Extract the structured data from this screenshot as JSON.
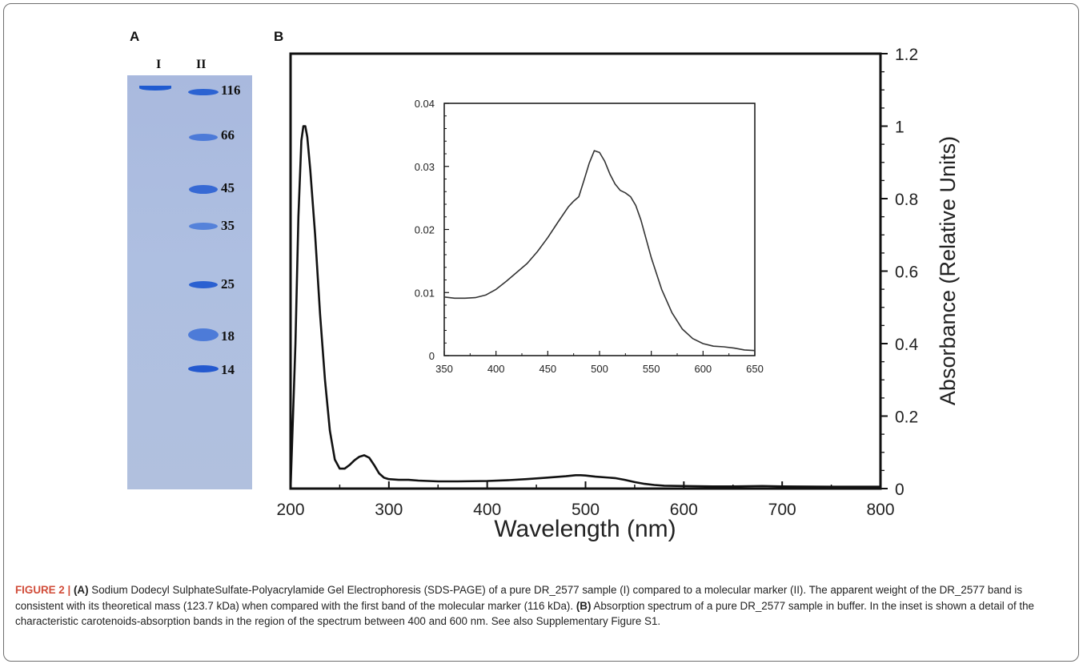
{
  "panel_a": {
    "letter": "A",
    "lanes": [
      "I",
      "II"
    ],
    "marker_labels": [
      "116",
      "66",
      "45",
      "35",
      "25",
      "18",
      "14"
    ]
  },
  "chart_data": [
    {
      "type": "line",
      "panel": "B",
      "xlabel": "Wavelength (nm)",
      "ylabel": "Absorbance (Relative Units)",
      "xlim": [
        200,
        800
      ],
      "ylim": [
        0,
        1.2
      ],
      "xticks": [
        200,
        300,
        400,
        500,
        600,
        700,
        800
      ],
      "yticks": [
        0,
        0.2,
        0.4,
        0.6,
        0.8,
        1,
        1.2
      ],
      "ytick_labels": [
        "0",
        "0.2",
        "0.4",
        "0.6",
        "0.8",
        "1",
        "1.2"
      ],
      "yaxis_side": "right",
      "grid": false,
      "series": [
        {
          "x": [
            200,
            205,
            208,
            211,
            213,
            215,
            217,
            220,
            225,
            230,
            235,
            240,
            245,
            250,
            255,
            260,
            265,
            270,
            275,
            280,
            285,
            290,
            295,
            300,
            310,
            320,
            330,
            350,
            370,
            400,
            420,
            440,
            460,
            480,
            490,
            495,
            500,
            510,
            520,
            530,
            540,
            550,
            560,
            570,
            580,
            600,
            630,
            650,
            680,
            700,
            750,
            800
          ],
          "y": [
            0.0,
            0.4,
            0.75,
            0.96,
            1.0,
            1.0,
            0.97,
            0.88,
            0.7,
            0.48,
            0.3,
            0.16,
            0.08,
            0.055,
            0.055,
            0.065,
            0.078,
            0.088,
            0.092,
            0.085,
            0.065,
            0.042,
            0.03,
            0.026,
            0.024,
            0.024,
            0.022,
            0.02,
            0.02,
            0.021,
            0.023,
            0.026,
            0.03,
            0.034,
            0.037,
            0.037,
            0.036,
            0.033,
            0.031,
            0.029,
            0.024,
            0.018,
            0.013,
            0.01,
            0.008,
            0.007,
            0.006,
            0.006,
            0.007,
            0.006,
            0.005,
            0.005
          ]
        }
      ]
    },
    {
      "type": "line",
      "panel": "inset",
      "xlim": [
        350,
        650
      ],
      "ylim": [
        0,
        0.04
      ],
      "xticks": [
        350,
        400,
        450,
        500,
        550,
        600,
        650
      ],
      "yticks": [
        0,
        0.01,
        0.02,
        0.03,
        0.04
      ],
      "ytick_labels": [
        "0",
        "0.01",
        "0.02",
        "0.03",
        "0.04"
      ],
      "grid": false,
      "series": [
        {
          "x": [
            350,
            360,
            370,
            380,
            390,
            400,
            410,
            420,
            430,
            440,
            450,
            460,
            470,
            475,
            480,
            485,
            490,
            495,
            500,
            505,
            510,
            515,
            520,
            525,
            530,
            535,
            540,
            545,
            550,
            560,
            570,
            580,
            590,
            600,
            610,
            620,
            630,
            640,
            650
          ],
          "y": [
            0.0093,
            0.0091,
            0.0091,
            0.0092,
            0.0096,
            0.0105,
            0.0118,
            0.0132,
            0.0146,
            0.0165,
            0.0187,
            0.0212,
            0.0236,
            0.0245,
            0.0252,
            0.0278,
            0.0305,
            0.0325,
            0.0322,
            0.0308,
            0.0288,
            0.0272,
            0.0262,
            0.0258,
            0.0252,
            0.0238,
            0.0215,
            0.0185,
            0.0155,
            0.0105,
            0.0068,
            0.0042,
            0.0027,
            0.0019,
            0.0015,
            0.0014,
            0.0012,
            0.0009,
            0.0008
          ]
        }
      ]
    }
  ],
  "caption": {
    "label": "FIGURE 2 |",
    "a_tag": "(A)",
    "a_text": " Sodium Dodecyl SulphateSulfate-Polyacrylamide Gel Electrophoresis (SDS-PAGE) of a pure DR_2577 sample (I) compared to a molecular marker (II). The apparent weight of the DR_2577 band is consistent with its theoretical mass (123.7 kDa) when compared with the first band of the molecular marker (116 kDa). ",
    "b_tag": "(B)",
    "b_text": " Absorption spectrum of a pure DR_2577 sample in buffer. In the inset is shown a detail of the characteristic carotenoids-absorption bands in the region of the spectrum between 400 and 600 nm. See also Supplementary Figure S1."
  }
}
